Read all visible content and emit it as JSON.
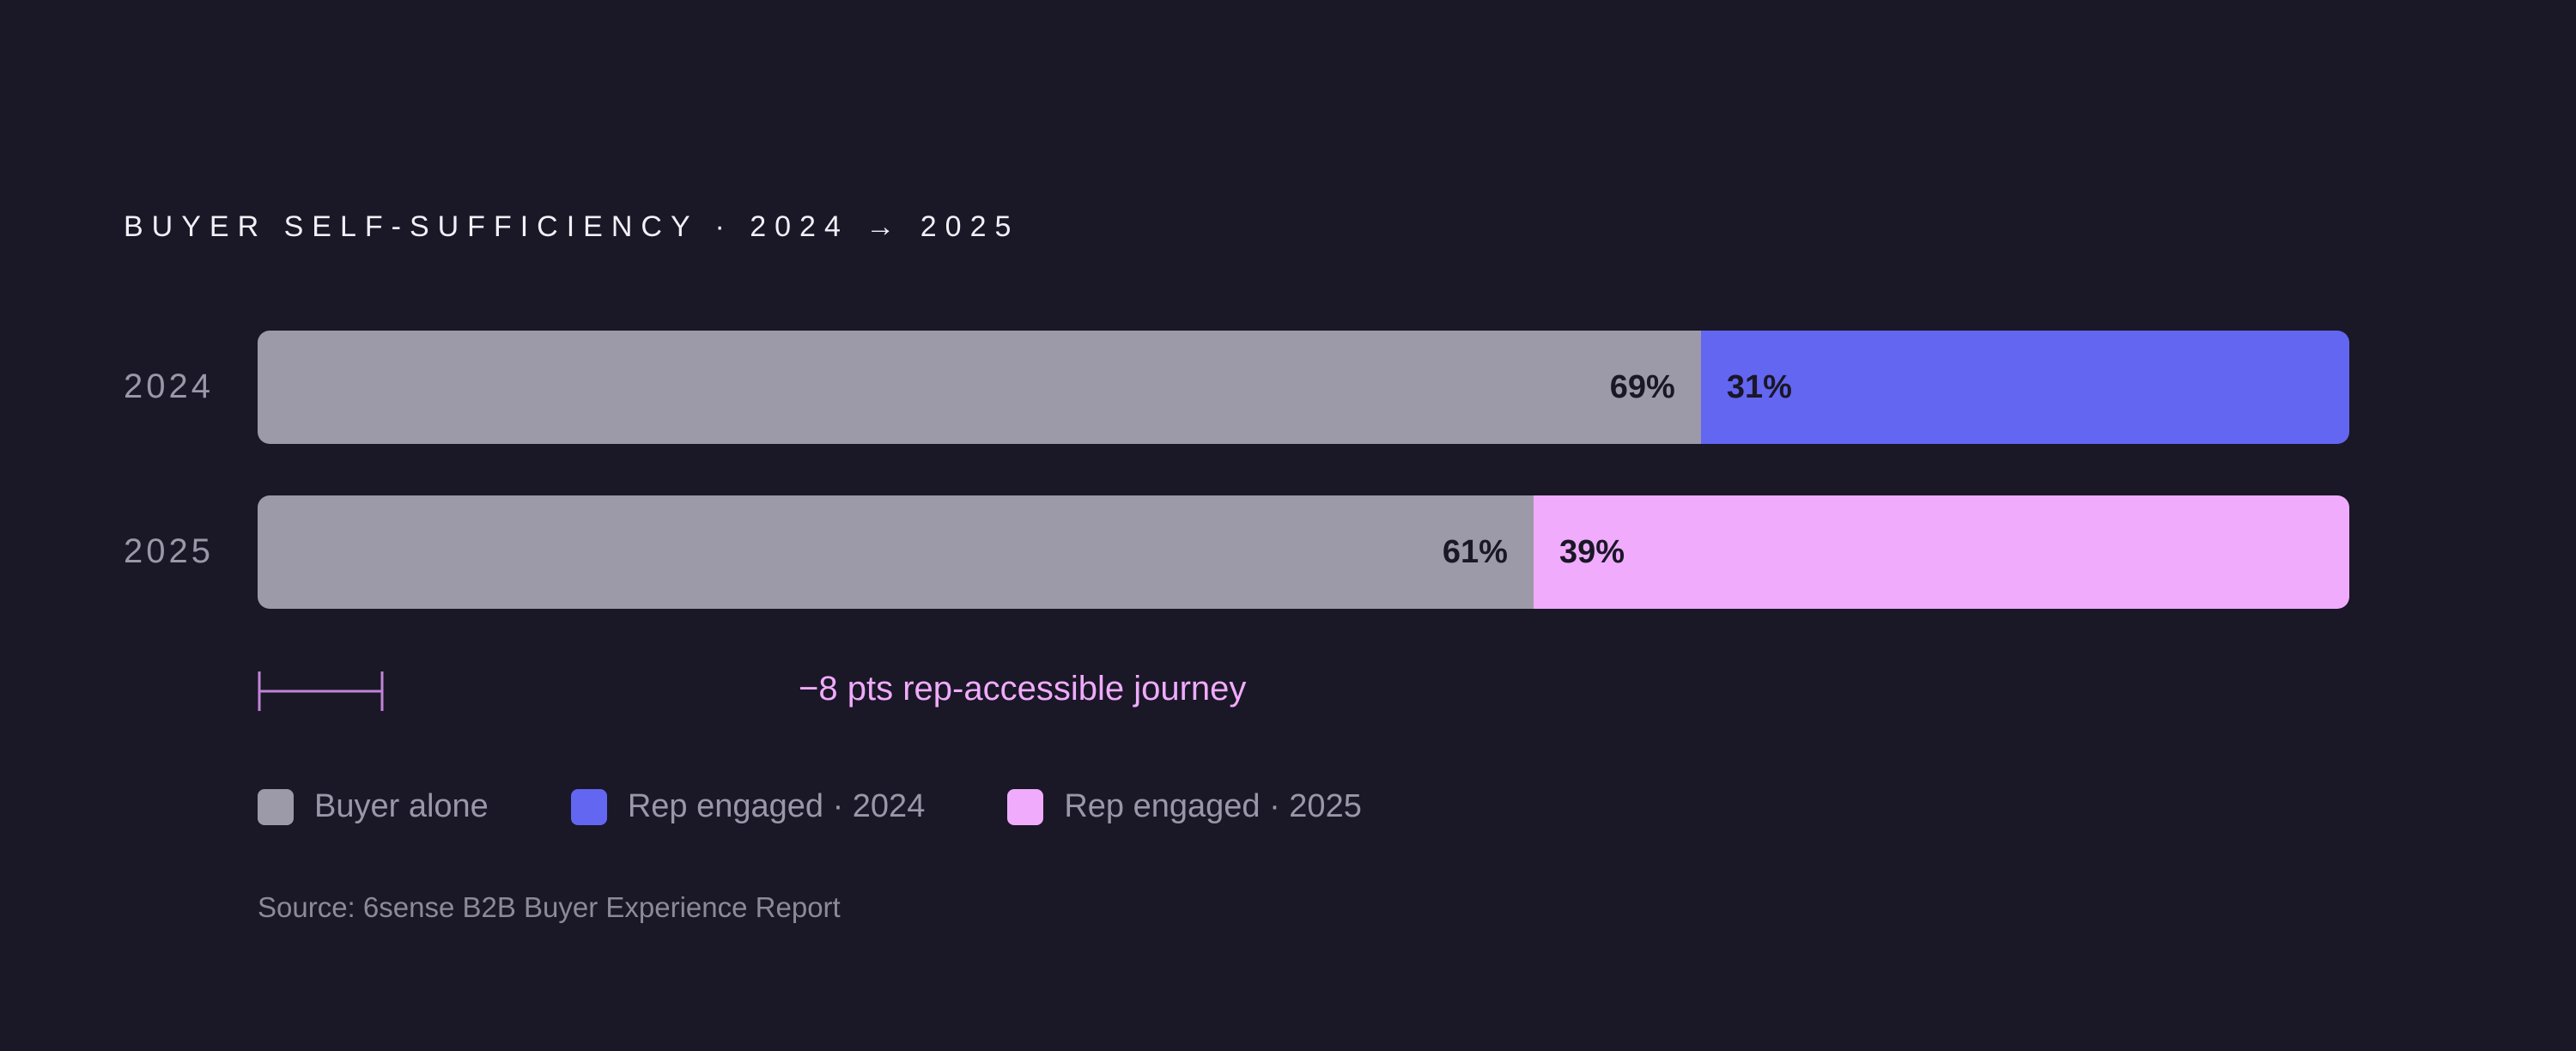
{
  "chart_data": {
    "type": "bar",
    "orientation": "horizontal",
    "stacked": true,
    "title": "BUYER SELF-SUFFICIENCY · 2024 → 2025",
    "categories": [
      "2024",
      "2025"
    ],
    "series": [
      {
        "name": "Buyer alone",
        "values": [
          69,
          61
        ],
        "labels": [
          "69%",
          "61%"
        ],
        "color": "#9c99a9"
      },
      {
        "name": "Rep engaged",
        "values": [
          31,
          39
        ],
        "labels": [
          "31%",
          "39%"
        ],
        "colors": [
          "#6366f1",
          "#f0abfc"
        ]
      }
    ],
    "xlim": [
      0,
      100
    ],
    "grid": false,
    "legend": {
      "placement": "bottom-left",
      "items": [
        {
          "label": "Buyer alone",
          "color": "#9c99a9"
        },
        {
          "label": "Rep engaged · 2024",
          "color": "#6366f1"
        },
        {
          "label": "Rep engaged · 2025",
          "color": "#f0abfc"
        }
      ]
    },
    "annotation": "−8 pts rep-accessible journey",
    "source": "Source: 6sense B2B Buyer Experience Report"
  },
  "colors": {
    "background": "#1a1727",
    "label_dark": "#1a1727",
    "annotation": "#f0abfc"
  }
}
